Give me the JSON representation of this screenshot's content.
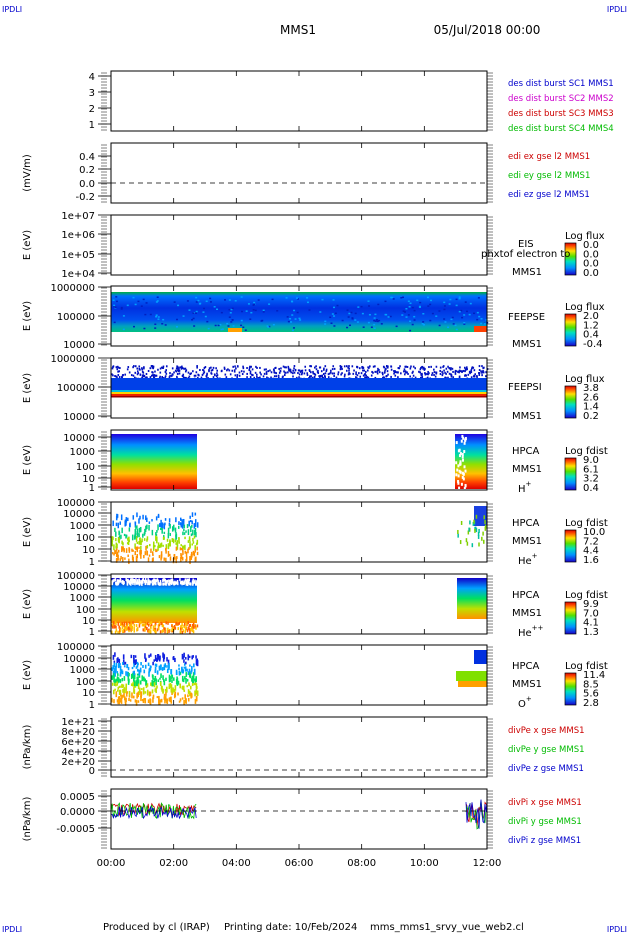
{
  "header": {
    "corner_tl": "IPDLI",
    "corner_tr": "IPDLI",
    "corner_bl": "IPDLI",
    "corner_br": "IPDLI",
    "mission": "MMS1",
    "date": "05/Jul/2018 00:00"
  },
  "footer": {
    "produced_by": "Produced by cl (IRAP)",
    "printing_date": "Printing date: 10/Feb/2024",
    "filename": "mms_mms1_srvy_vue_web2.cl"
  },
  "colors": {
    "mms1": "#0000cc",
    "mms2": "#cc00cc",
    "mms3": "#cc0000",
    "mms4": "#00bb00",
    "red": "#cc0000",
    "green": "#00bb00",
    "blue": "#0000cc"
  },
  "chart_data": {
    "type": "stacked-time-series",
    "x_ticks": [
      "00:00",
      "02:00",
      "04:00",
      "06:00",
      "08:00",
      "10:00",
      "12:00"
    ],
    "panels": [
      {
        "id": "des-dist",
        "type": "line",
        "ylabel": "",
        "yticks": [
          "4",
          "3",
          "2",
          "1"
        ],
        "legend": [
          {
            "text": "des dist burst SC1 MMS1",
            "color": "#0000cc"
          },
          {
            "text": "des dist burst SC2 MMS2",
            "color": "#cc00cc"
          },
          {
            "text": "des dist burst SC3 MMS3",
            "color": "#cc0000"
          },
          {
            "text": "des dist burst SC4 MMS4",
            "color": "#00bb00"
          }
        ]
      },
      {
        "id": "edi-e",
        "type": "line",
        "ylabel": "(mV/m)",
        "yticks": [
          "0.4",
          "0.2",
          "0.0",
          "-0.2"
        ],
        "legend": [
          {
            "text": "edi ex gse l2 MMS1",
            "color": "#cc0000"
          },
          {
            "text": "edi ey gse l2 MMS1",
            "color": "#00bb00"
          },
          {
            "text": "edi ez gse l2 MMS1",
            "color": "#0000cc"
          }
        ]
      },
      {
        "id": "eis",
        "type": "heatmap",
        "ylabel": "E (eV)",
        "yticks": [
          "1e+07",
          "1e+06",
          "1e+05",
          "1e+04"
        ],
        "side_labels": [
          "EIS",
          "MMS1"
        ],
        "overlay_text": "phxtof electron to",
        "cbar_title": "Log flux",
        "cbar_ticks": [
          "0.0",
          "0.0",
          "0.0",
          "0.0"
        ]
      },
      {
        "id": "feepse",
        "type": "heatmap",
        "ylabel": "E (eV)",
        "yticks": [
          "1000000",
          "100000",
          "10000"
        ],
        "side_labels": [
          "FEEPSE",
          "MMS1"
        ],
        "cbar_title": "Log flux",
        "cbar_ticks": [
          "2.0",
          "1.2",
          "0.4",
          "-0.4"
        ]
      },
      {
        "id": "feepsi",
        "type": "heatmap",
        "ylabel": "E (eV)",
        "yticks": [
          "1000000",
          "100000",
          "10000"
        ],
        "side_labels": [
          "FEEPSI",
          "MMS1"
        ],
        "cbar_title": "Log flux",
        "cbar_ticks": [
          "3.8",
          "2.6",
          "1.4",
          "0.2"
        ]
      },
      {
        "id": "hpca-h",
        "type": "heatmap",
        "ylabel": "E (eV)",
        "yticks": [
          "10000",
          "1000",
          "100",
          "10",
          "1"
        ],
        "side_labels": [
          "HPCA",
          "MMS1"
        ],
        "species": "H",
        "species_sup": "+",
        "cbar_title": "Log fdist",
        "cbar_ticks": [
          "9.0",
          "6.1",
          "3.2",
          "0.4"
        ]
      },
      {
        "id": "hpca-he",
        "type": "heatmap",
        "ylabel": "E (eV)",
        "yticks": [
          "100000",
          "10000",
          "1000",
          "100",
          "10",
          "1"
        ],
        "side_labels": [
          "HPCA",
          "MMS1"
        ],
        "species": "He",
        "species_sup": "+",
        "cbar_title": "Log fdist",
        "cbar_ticks": [
          "10.0",
          "7.2",
          "4.4",
          "1.6"
        ]
      },
      {
        "id": "hpca-hepp",
        "type": "heatmap",
        "ylabel": "E (eV)",
        "yticks": [
          "100000",
          "10000",
          "1000",
          "100",
          "10",
          "1"
        ],
        "side_labels": [
          "HPCA",
          "MMS1"
        ],
        "species": "He",
        "species_sup": "++",
        "cbar_title": "Log fdist",
        "cbar_ticks": [
          "9.9",
          "7.0",
          "4.1",
          "1.3"
        ]
      },
      {
        "id": "hpca-o",
        "type": "heatmap",
        "ylabel": "E (eV)",
        "yticks": [
          "100000",
          "10000",
          "1000",
          "100",
          "10",
          "1"
        ],
        "side_labels": [
          "HPCA",
          "MMS1"
        ],
        "species": "O",
        "species_sup": "+",
        "cbar_title": "Log fdist",
        "cbar_ticks": [
          "11.4",
          "8.5",
          "5.6",
          "2.8"
        ]
      },
      {
        "id": "divpe",
        "type": "line",
        "ylabel": "(nPa/km)",
        "yticks": [
          "1e+21",
          "8e+20",
          "6e+20",
          "4e+20",
          "2e+20",
          "0"
        ],
        "legend": [
          {
            "text": "divPe x gse MMS1",
            "color": "#cc0000"
          },
          {
            "text": "divPe y gse MMS1",
            "color": "#00bb00"
          },
          {
            "text": "divPe z gse MMS1",
            "color": "#0000cc"
          }
        ]
      },
      {
        "id": "divpi",
        "type": "line",
        "ylabel": "(nPa/km)",
        "yticks": [
          "0.0005",
          "0.0000",
          "-0.0005"
        ],
        "legend": [
          {
            "text": "divPi x gse MMS1",
            "color": "#cc0000"
          },
          {
            "text": "divPi y gse MMS1",
            "color": "#00bb00"
          },
          {
            "text": "divPi z gse MMS1",
            "color": "#0000cc"
          }
        ]
      }
    ]
  }
}
